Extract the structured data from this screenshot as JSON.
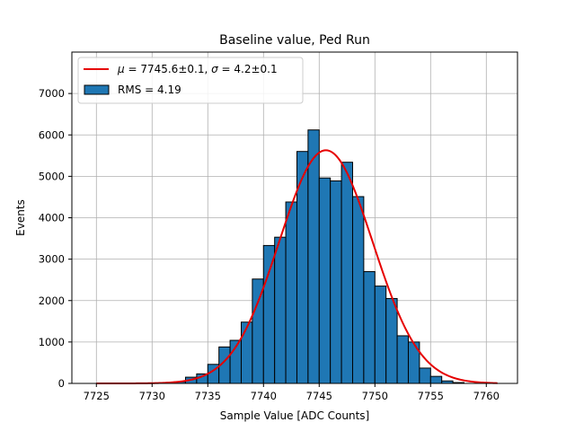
{
  "chart_data": {
    "type": "bar",
    "title": "Baseline value, Ped Run",
    "xlabel": "Sample Value [ADC Counts]",
    "ylabel": "Events",
    "xlim": [
      7722.8,
      7762.8
    ],
    "ylim": [
      0,
      8000
    ],
    "xticks": [
      7725,
      7730,
      7735,
      7740,
      7745,
      7750,
      7755,
      7760
    ],
    "yticks": [
      0,
      1000,
      2000,
      3000,
      4000,
      5000,
      6000,
      7000
    ],
    "grid": true,
    "legend_position": "top-left",
    "bin_width": 1,
    "bins": [
      {
        "x": 7732.5,
        "value": 40
      },
      {
        "x": 7733.5,
        "value": 150
      },
      {
        "x": 7734.5,
        "value": 230
      },
      {
        "x": 7735.5,
        "value": 460
      },
      {
        "x": 7736.5,
        "value": 880
      },
      {
        "x": 7737.5,
        "value": 1040
      },
      {
        "x": 7738.5,
        "value": 1480
      },
      {
        "x": 7739.5,
        "value": 2520
      },
      {
        "x": 7740.5,
        "value": 3330
      },
      {
        "x": 7741.5,
        "value": 3530
      },
      {
        "x": 7742.5,
        "value": 4380
      },
      {
        "x": 7743.5,
        "value": 5600
      },
      {
        "x": 7744.5,
        "value": 6120
      },
      {
        "x": 7745.5,
        "value": 4960
      },
      {
        "x": 7746.5,
        "value": 4890
      },
      {
        "x": 7747.5,
        "value": 5340
      },
      {
        "x": 7748.5,
        "value": 4510
      },
      {
        "x": 7749.5,
        "value": 2700
      },
      {
        "x": 7750.5,
        "value": 2350
      },
      {
        "x": 7751.5,
        "value": 2050
      },
      {
        "x": 7752.5,
        "value": 1150
      },
      {
        "x": 7753.5,
        "value": 1000
      },
      {
        "x": 7754.5,
        "value": 370
      },
      {
        "x": 7755.5,
        "value": 170
      },
      {
        "x": 7756.5,
        "value": 60
      },
      {
        "x": 7757.5,
        "value": 20
      }
    ],
    "fit": {
      "mu": 7745.6,
      "sigma": 4.2,
      "amplitude": 5630,
      "x_range": [
        7725,
        7761
      ]
    },
    "legend": {
      "fit_prefix_mu": "μ",
      "fit_mu_text": " = 7745.6±0.1, ",
      "fit_prefix_sigma": "σ",
      "fit_sigma_text": " = 4.2±0.1",
      "hist_label": "RMS = 4.19"
    },
    "colors": {
      "bar_fill": "#1f77b4",
      "bar_edge": "#000000",
      "fit_line": "#e60000",
      "grid": "#b0b0b0"
    }
  }
}
